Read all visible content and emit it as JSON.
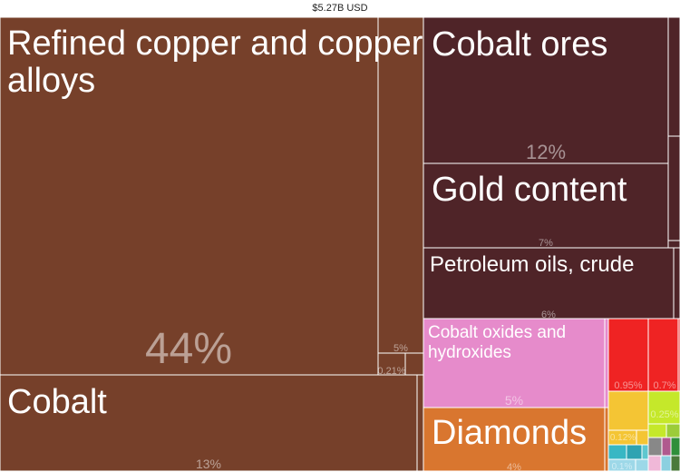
{
  "chart_data": {
    "type": "treemap",
    "total": "$5.27B USD",
    "items": [
      {
        "name": "Refined copper and copper alloys",
        "share": "44%",
        "color": "#76402a"
      },
      {
        "name": "Cobalt",
        "share": "13%",
        "color": "#76402a"
      },
      {
        "name": "",
        "share": "5%",
        "color": "#76402a"
      },
      {
        "name": "",
        "share": "0.21%",
        "color": "#76402a"
      },
      {
        "name": "Cobalt ores",
        "share": "12%",
        "color": "#4f2428"
      },
      {
        "name": "Gold content",
        "share": "7%",
        "color": "#4f2428"
      },
      {
        "name": "Petroleum oils, crude",
        "share": "6%",
        "color": "#4f2428"
      },
      {
        "name": "Cobalt oxides and hydroxides",
        "share": "5%",
        "color": "#e68bcb"
      },
      {
        "name": "Diamonds",
        "share": "4%",
        "color": "#d9762f"
      },
      {
        "name": "",
        "share": "0.95%",
        "color": "#ef2323"
      },
      {
        "name": "",
        "share": "0.7%",
        "color": "#ef2323"
      },
      {
        "name": "",
        "share": "0.25%",
        "color": "#c5e82a"
      },
      {
        "name": "",
        "share": "0.12%",
        "color": "#f4c534"
      },
      {
        "name": "",
        "share": "0.1%",
        "color": "#9dd8e8"
      }
    ]
  }
}
